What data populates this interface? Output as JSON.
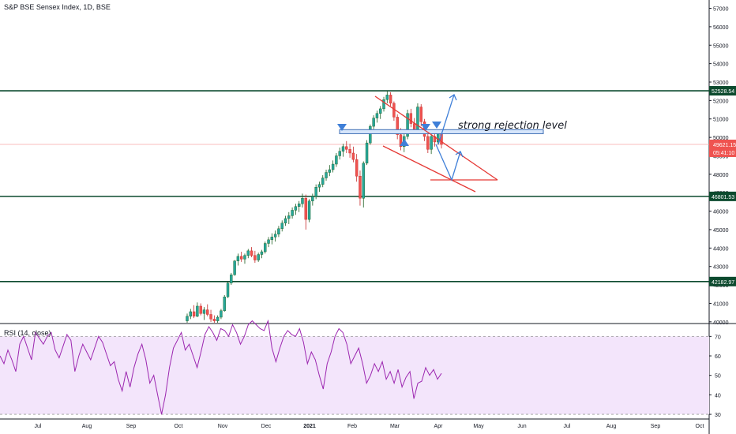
{
  "chart_data": {
    "type": "candlestick",
    "title": "S&P BSE Sensex Index, 1D, BSE",
    "y_ticks": [
      40000,
      41000,
      42000,
      43000,
      44000,
      45000,
      46000,
      47000,
      48000,
      49000,
      50000,
      51000,
      52000,
      53000,
      54000,
      55000,
      56000,
      57000
    ],
    "ylim": [
      39950,
      57450
    ],
    "x_ticks": [
      "Jul",
      "Aug",
      "Sep",
      "Oct",
      "Nov",
      "Dec",
      "2021",
      "Feb",
      "Mar",
      "Apr",
      "May",
      "Jun",
      "Jul",
      "Aug",
      "Sep",
      "Oct"
    ],
    "levels": [
      {
        "value": 52528.54,
        "label": "52528.54",
        "color": "#0c4a2e"
      },
      {
        "value": 46801.53,
        "label": "46801.53",
        "color": "#0c4a2e"
      },
      {
        "value": 42182.97,
        "label": "42182.97",
        "color": "#0c4a2e"
      }
    ],
    "current_price": {
      "value": 49621.15,
      "label": "49621.15",
      "countdown": "05:41:10",
      "color": "#ef5350"
    },
    "annotations": [
      {
        "type": "text",
        "text": "strong rejection level"
      },
      {
        "type": "zone",
        "from": 50200,
        "to": 50420,
        "label": "rejection zone"
      },
      {
        "type": "falling-wedge",
        "color": "#e53935"
      },
      {
        "type": "arrow-path",
        "color": "#3f7fd8"
      }
    ],
    "candles": [
      {
        "o": 40050,
        "h": 40450,
        "l": 39950,
        "c": 40300
      },
      {
        "o": 40300,
        "h": 40700,
        "l": 40150,
        "c": 40550
      },
      {
        "o": 40550,
        "h": 40900,
        "l": 40200,
        "c": 40300
      },
      {
        "o": 40300,
        "h": 41050,
        "l": 40250,
        "c": 40850
      },
      {
        "o": 40850,
        "h": 41000,
        "l": 40350,
        "c": 40450
      },
      {
        "o": 40450,
        "h": 40800,
        "l": 40100,
        "c": 40650
      },
      {
        "o": 40650,
        "h": 40950,
        "l": 40300,
        "c": 40400
      },
      {
        "o": 40400,
        "h": 40650,
        "l": 40000,
        "c": 40150
      },
      {
        "o": 40150,
        "h": 40350,
        "l": 39950,
        "c": 40050
      },
      {
        "o": 40050,
        "h": 40350,
        "l": 39950,
        "c": 40250
      },
      {
        "o": 40250,
        "h": 40700,
        "l": 40150,
        "c": 40600
      },
      {
        "o": 40600,
        "h": 41450,
        "l": 40550,
        "c": 41350
      },
      {
        "o": 41350,
        "h": 42150,
        "l": 41300,
        "c": 42100
      },
      {
        "o": 42100,
        "h": 42650,
        "l": 42000,
        "c": 42550
      },
      {
        "o": 42550,
        "h": 43350,
        "l": 42500,
        "c": 43300
      },
      {
        "o": 43300,
        "h": 43700,
        "l": 43050,
        "c": 43550
      },
      {
        "o": 43550,
        "h": 43800,
        "l": 43250,
        "c": 43400
      },
      {
        "o": 43400,
        "h": 43700,
        "l": 43150,
        "c": 43600
      },
      {
        "o": 43600,
        "h": 43950,
        "l": 43450,
        "c": 43850
      },
      {
        "o": 43850,
        "h": 44050,
        "l": 43500,
        "c": 43600
      },
      {
        "o": 43600,
        "h": 43850,
        "l": 43200,
        "c": 43350
      },
      {
        "o": 43350,
        "h": 43750,
        "l": 43250,
        "c": 43650
      },
      {
        "o": 43650,
        "h": 43900,
        "l": 43450,
        "c": 43800
      },
      {
        "o": 43800,
        "h": 44350,
        "l": 43700,
        "c": 44250
      },
      {
        "o": 44250,
        "h": 44600,
        "l": 44050,
        "c": 44450
      },
      {
        "o": 44450,
        "h": 44800,
        "l": 44200,
        "c": 44600
      },
      {
        "o": 44600,
        "h": 44950,
        "l": 44350,
        "c": 44750
      },
      {
        "o": 44750,
        "h": 45200,
        "l": 44600,
        "c": 45050
      },
      {
        "o": 45050,
        "h": 45500,
        "l": 44900,
        "c": 45350
      },
      {
        "o": 45350,
        "h": 45750,
        "l": 45200,
        "c": 45600
      },
      {
        "o": 45600,
        "h": 45950,
        "l": 45300,
        "c": 45750
      },
      {
        "o": 45750,
        "h": 46200,
        "l": 45600,
        "c": 46050
      },
      {
        "o": 46050,
        "h": 46400,
        "l": 45800,
        "c": 46250
      },
      {
        "o": 46250,
        "h": 46550,
        "l": 45950,
        "c": 46400
      },
      {
        "o": 46400,
        "h": 46950,
        "l": 46200,
        "c": 46700
      },
      {
        "o": 46700,
        "h": 46900,
        "l": 45000,
        "c": 45550
      },
      {
        "o": 45550,
        "h": 46650,
        "l": 45400,
        "c": 46550
      },
      {
        "o": 46550,
        "h": 46950,
        "l": 46300,
        "c": 46800
      },
      {
        "o": 46800,
        "h": 47450,
        "l": 46650,
        "c": 47300
      },
      {
        "o": 47300,
        "h": 47600,
        "l": 47050,
        "c": 47450
      },
      {
        "o": 47450,
        "h": 47950,
        "l": 47300,
        "c": 47800
      },
      {
        "o": 47800,
        "h": 48250,
        "l": 47650,
        "c": 48100
      },
      {
        "o": 48100,
        "h": 48500,
        "l": 47900,
        "c": 48250
      },
      {
        "o": 48250,
        "h": 48750,
        "l": 48100,
        "c": 48550
      },
      {
        "o": 48550,
        "h": 49150,
        "l": 48400,
        "c": 49000
      },
      {
        "o": 49000,
        "h": 49450,
        "l": 48800,
        "c": 49250
      },
      {
        "o": 49250,
        "h": 49650,
        "l": 48950,
        "c": 49500
      },
      {
        "o": 49500,
        "h": 49800,
        "l": 49150,
        "c": 49350
      },
      {
        "o": 49350,
        "h": 49650,
        "l": 48900,
        "c": 49150
      },
      {
        "o": 49150,
        "h": 49500,
        "l": 48650,
        "c": 48800
      },
      {
        "o": 48800,
        "h": 49100,
        "l": 47600,
        "c": 47900
      },
      {
        "o": 47900,
        "h": 48200,
        "l": 46300,
        "c": 46700
      },
      {
        "o": 46700,
        "h": 48700,
        "l": 46200,
        "c": 48600
      },
      {
        "o": 48600,
        "h": 49850,
        "l": 48500,
        "c": 49700
      },
      {
        "o": 49700,
        "h": 50700,
        "l": 49600,
        "c": 50600
      },
      {
        "o": 50600,
        "h": 51200,
        "l": 50450,
        "c": 51050
      },
      {
        "o": 51050,
        "h": 51450,
        "l": 50800,
        "c": 51300
      },
      {
        "o": 51300,
        "h": 51700,
        "l": 51000,
        "c": 51550
      },
      {
        "o": 51550,
        "h": 52200,
        "l": 51400,
        "c": 52050
      },
      {
        "o": 52050,
        "h": 52500,
        "l": 51850,
        "c": 52300
      },
      {
        "o": 52300,
        "h": 52450,
        "l": 51700,
        "c": 51850
      },
      {
        "o": 51850,
        "h": 51950,
        "l": 50900,
        "c": 51100
      },
      {
        "o": 51100,
        "h": 51250,
        "l": 49900,
        "c": 50150
      },
      {
        "o": 50150,
        "h": 50500,
        "l": 49300,
        "c": 49500
      },
      {
        "o": 49500,
        "h": 50200,
        "l": 49200,
        "c": 50050
      },
      {
        "o": 50050,
        "h": 51500,
        "l": 49900,
        "c": 51300
      },
      {
        "o": 51300,
        "h": 51550,
        "l": 50550,
        "c": 50750
      },
      {
        "o": 50750,
        "h": 51050,
        "l": 50200,
        "c": 50400
      },
      {
        "o": 50400,
        "h": 51850,
        "l": 50300,
        "c": 51650
      },
      {
        "o": 51650,
        "h": 51800,
        "l": 50600,
        "c": 50850
      },
      {
        "o": 50850,
        "h": 51000,
        "l": 49800,
        "c": 50050
      },
      {
        "o": 50050,
        "h": 50300,
        "l": 49150,
        "c": 49350
      },
      {
        "o": 49350,
        "h": 50200,
        "l": 49100,
        "c": 50050
      },
      {
        "o": 50050,
        "h": 50400,
        "l": 49500,
        "c": 49750
      },
      {
        "o": 49750,
        "h": 50350,
        "l": 49600,
        "c": 50250
      },
      {
        "o": 50250,
        "h": 50450,
        "l": 49400,
        "c": 49621.15
      }
    ]
  },
  "rsi": {
    "title": "RSI (14, close)",
    "y_ticks": [
      30,
      40,
      50,
      60,
      70
    ],
    "ylim": [
      28,
      75
    ],
    "band": [
      30,
      70
    ],
    "values": [
      60,
      56,
      63,
      58,
      52,
      66,
      70,
      64,
      58,
      72,
      69,
      66,
      70,
      72,
      63,
      59,
      65,
      71,
      68,
      52,
      60,
      66,
      62,
      58,
      64,
      70,
      67,
      61,
      55,
      57,
      48,
      42,
      52,
      44,
      54,
      61,
      66,
      58,
      46,
      50,
      40,
      30,
      40,
      54,
      64,
      68,
      72,
      63,
      66,
      60,
      54,
      62,
      71,
      75,
      72,
      68,
      74,
      73,
      70,
      76,
      72,
      66,
      70,
      76,
      78,
      76,
      74,
      73,
      78,
      64,
      57,
      64,
      70,
      73,
      71,
      70,
      74,
      67,
      56,
      62,
      58,
      50,
      43,
      56,
      62,
      70,
      74,
      72,
      66,
      56,
      60,
      64,
      56,
      46,
      50,
      56,
      52,
      57,
      48,
      52,
      46,
      53,
      44,
      49,
      52,
      38,
      46,
      47,
      54,
      50,
      53,
      48,
      51
    ]
  }
}
